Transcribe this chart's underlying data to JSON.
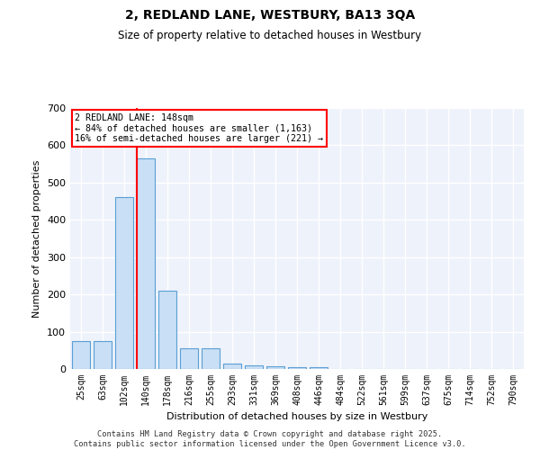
{
  "title_line1": "2, REDLAND LANE, WESTBURY, BA13 3QA",
  "title_line2": "Size of property relative to detached houses in Westbury",
  "xlabel": "Distribution of detached houses by size in Westbury",
  "ylabel": "Number of detached properties",
  "categories": [
    "25sqm",
    "63sqm",
    "102sqm",
    "140sqm",
    "178sqm",
    "216sqm",
    "255sqm",
    "293sqm",
    "331sqm",
    "369sqm",
    "408sqm",
    "446sqm",
    "484sqm",
    "522sqm",
    "561sqm",
    "599sqm",
    "637sqm",
    "675sqm",
    "714sqm",
    "752sqm",
    "790sqm"
  ],
  "values": [
    75,
    75,
    460,
    565,
    210,
    55,
    55,
    15,
    10,
    8,
    5,
    5,
    0,
    0,
    0,
    0,
    0,
    0,
    0,
    0,
    0
  ],
  "bar_color": "#c9dff5",
  "bar_edge_color": "#5a9fd4",
  "annotation_text": "2 REDLAND LANE: 148sqm\n← 84% of detached houses are smaller (1,163)\n16% of semi-detached houses are larger (221) →",
  "annotation_box_color": "white",
  "annotation_border_color": "red",
  "ylim": [
    0,
    700
  ],
  "yticks": [
    0,
    100,
    200,
    300,
    400,
    500,
    600,
    700
  ],
  "bg_color": "#eef2fb",
  "grid_color": "white",
  "footer_line1": "Contains HM Land Registry data © Crown copyright and database right 2025.",
  "footer_line2": "Contains public sector information licensed under the Open Government Licence v3.0."
}
